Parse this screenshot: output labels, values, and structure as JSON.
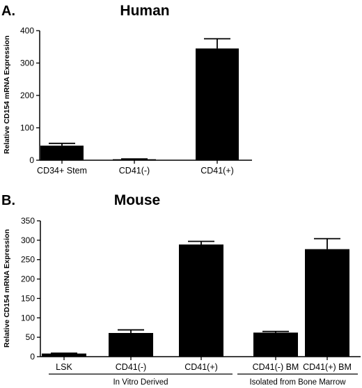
{
  "chart_data": [
    {
      "type": "bar",
      "panel": "A.",
      "title": "Human",
      "ylabel": "Relative CD154 mRNA Expression",
      "xlabel": "",
      "ylim": [
        0,
        400
      ],
      "yticks": [
        0,
        100,
        200,
        300,
        400
      ],
      "categories": [
        "CD34+ Stem",
        "CD41(-)",
        "CD41(+)"
      ],
      "values": [
        45,
        3,
        345
      ],
      "errors": [
        7,
        1,
        30
      ],
      "bar_color": "#000000"
    },
    {
      "type": "bar",
      "panel": "B.",
      "title": "Mouse",
      "ylabel": "Relative CD154 mRNA Expression",
      "xlabel": "",
      "ylim": [
        0,
        350
      ],
      "yticks": [
        0,
        50,
        100,
        150,
        200,
        250,
        300,
        350
      ],
      "categories": [
        "LSK",
        "CD41(-)",
        "CD41(+)",
        "CD41(-) BM",
        "CD41(+) BM"
      ],
      "values": [
        8,
        61,
        289,
        62,
        277
      ],
      "errors": [
        1,
        8,
        8,
        3,
        27
      ],
      "groups": [
        {
          "label": "In Vitro Derived",
          "categories": [
            0,
            1,
            2
          ]
        },
        {
          "label": "Isolated from Bone Marrow",
          "categories": [
            3,
            4
          ]
        }
      ],
      "bar_color": "#000000"
    }
  ]
}
